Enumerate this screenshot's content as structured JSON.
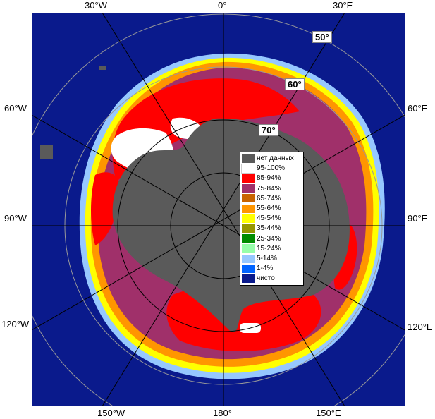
{
  "axis_labels": {
    "top": [
      "30°W",
      "0°",
      "30°E"
    ],
    "left": [
      "60°W",
      "90°W",
      "120°W"
    ],
    "right": [
      "60°E",
      "90°E",
      "120°E"
    ],
    "bottom": [
      "150°W",
      "180°",
      "150°E"
    ]
  },
  "latitude_labels": [
    "50°",
    "60°",
    "70°"
  ],
  "legend": [
    {
      "label": "нет данных",
      "color": "#5a5a5a"
    },
    {
      "label": "95-100%",
      "color": "#ffffff"
    },
    {
      "label": "85-94%",
      "color": "#ff0000"
    },
    {
      "label": "75-84%",
      "color": "#a0306a"
    },
    {
      "label": "65-74%",
      "color": "#c86400"
    },
    {
      "label": "55-64%",
      "color": "#ff9600"
    },
    {
      "label": "45-54%",
      "color": "#ffff00"
    },
    {
      "label": "35-44%",
      "color": "#969600"
    },
    {
      "label": "25-34%",
      "color": "#008c00"
    },
    {
      "label": "15-24%",
      "color": "#96ffaa"
    },
    {
      "label": "5-14%",
      "color": "#96c8ff"
    },
    {
      "label": "1-4%",
      "color": "#0064ff"
    },
    {
      "label": "чисто",
      "color": "#0a1a8c"
    }
  ]
}
